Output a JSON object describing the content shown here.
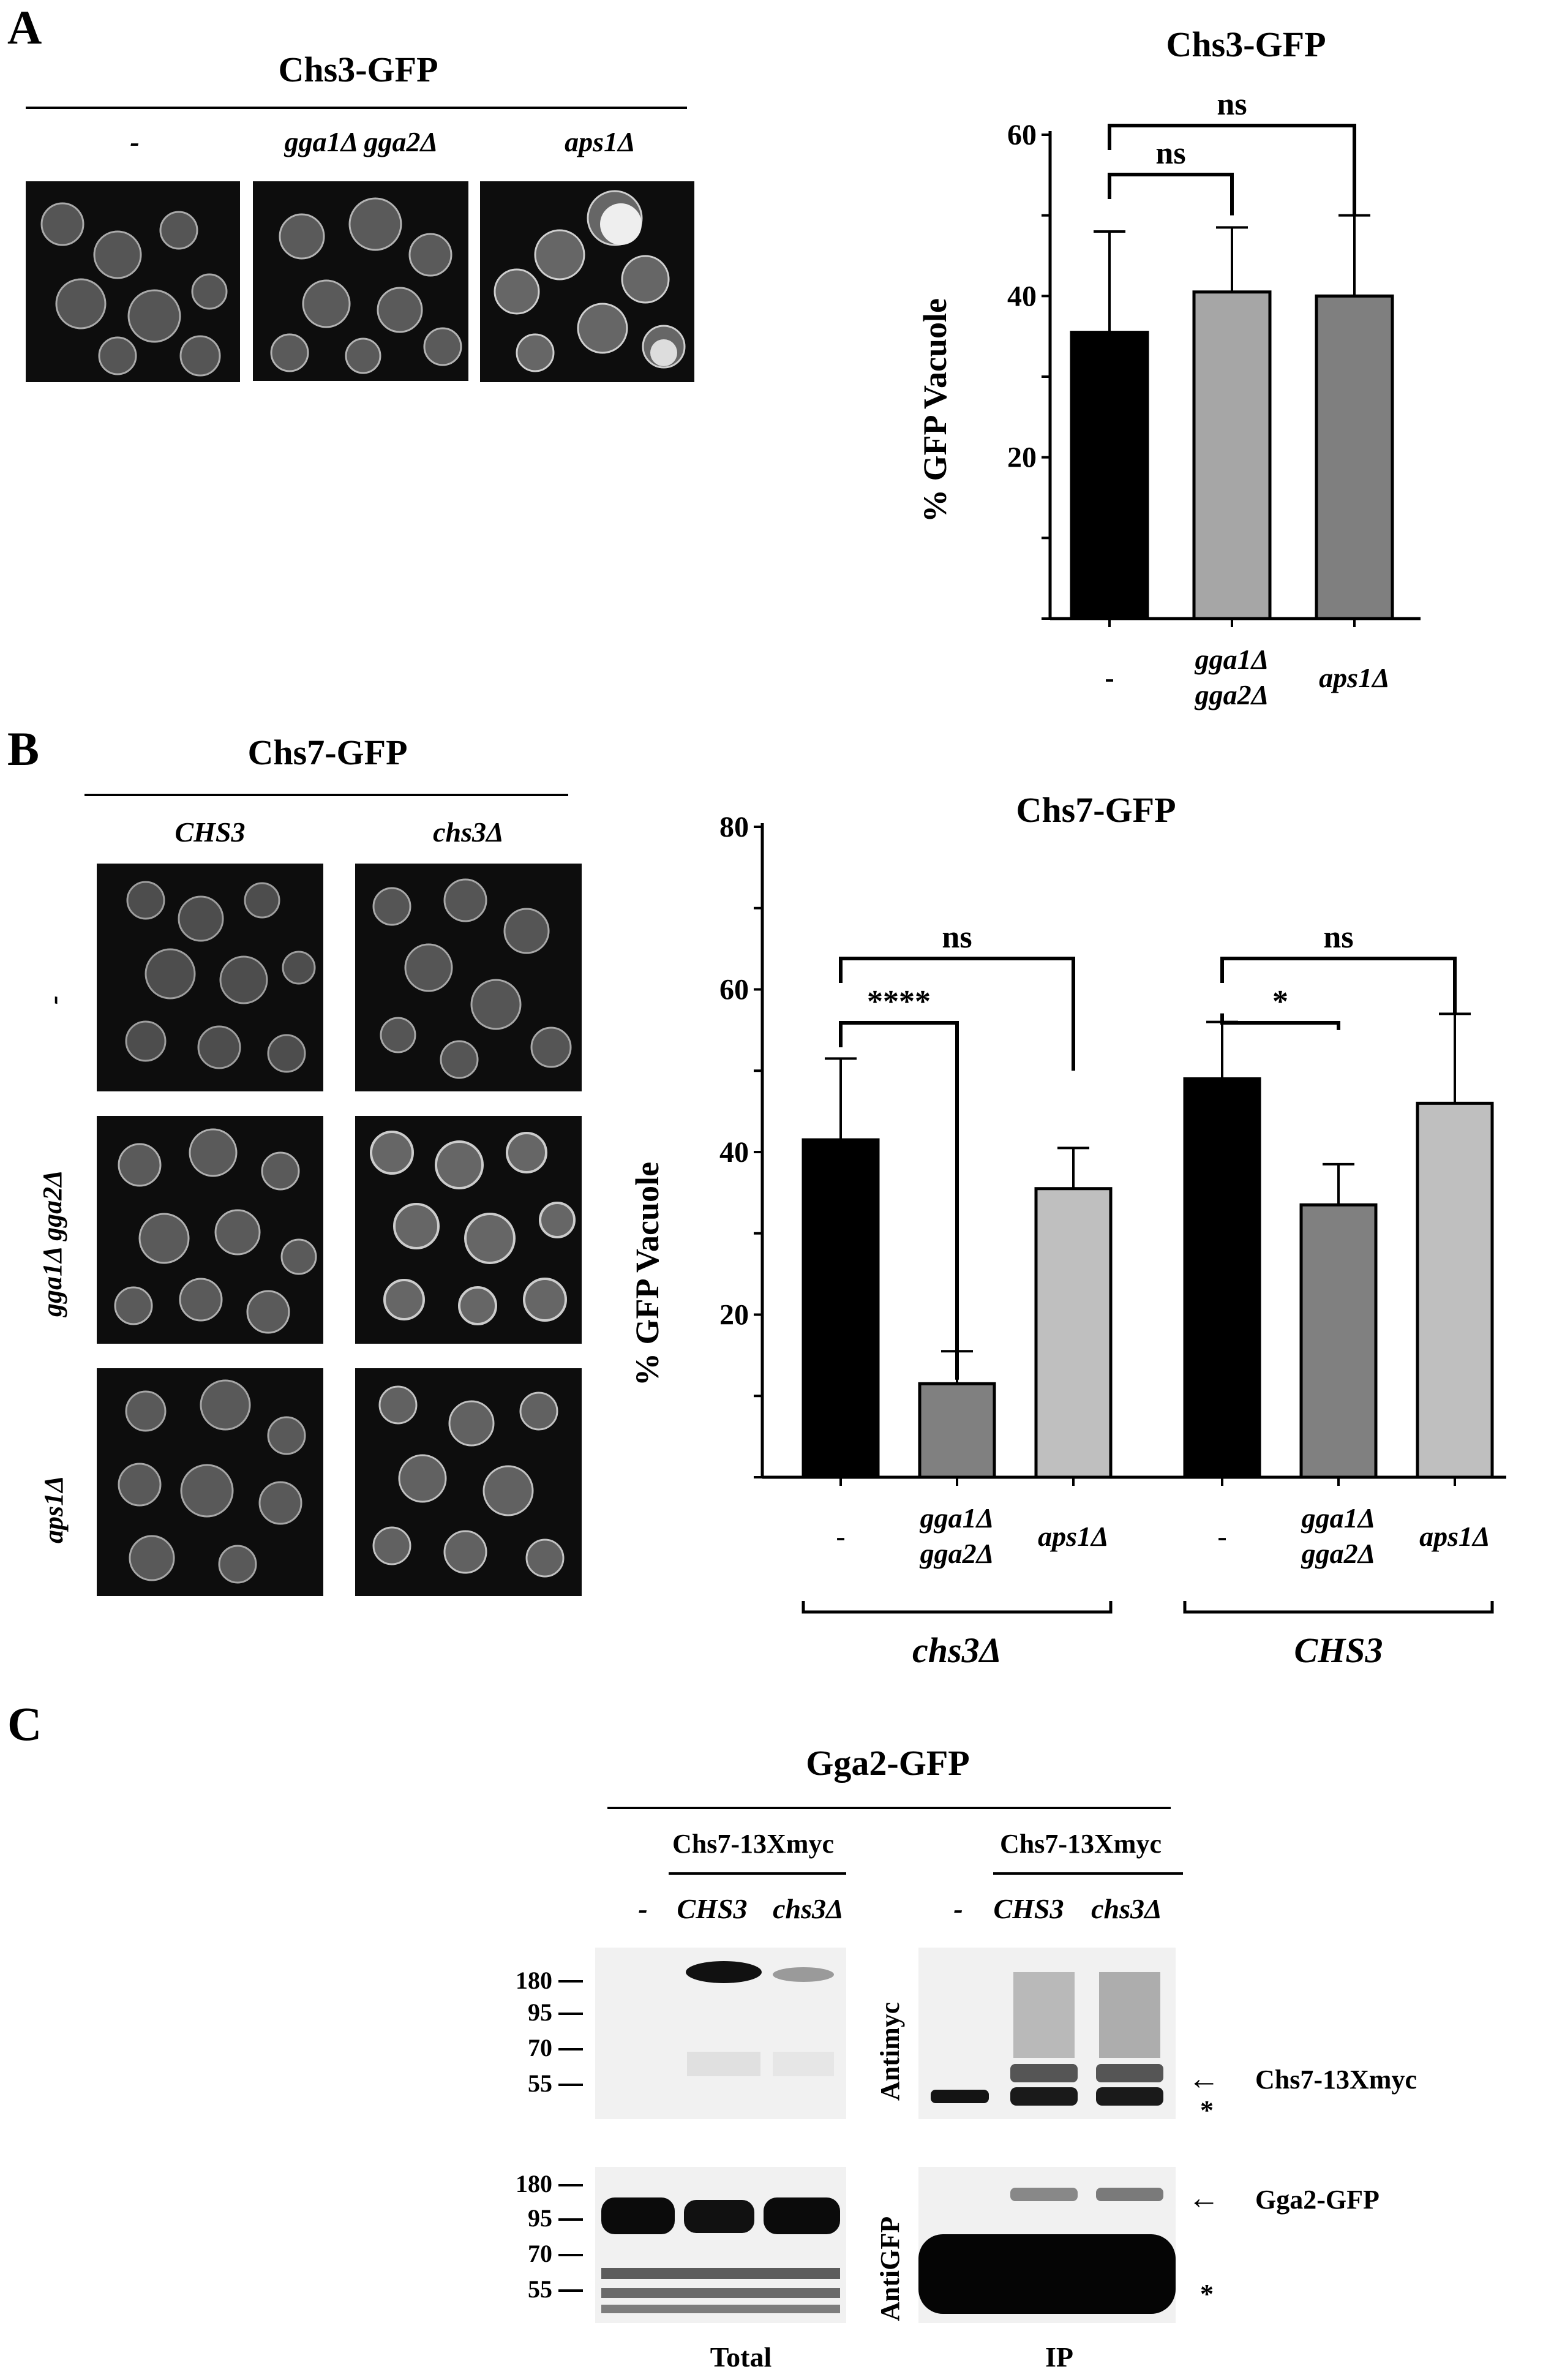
{
  "panels": {
    "a": {
      "label": "A",
      "title": "Chs3-GFP",
      "conditions": [
        "-",
        "gga1Δ gga2Δ",
        "aps1Δ"
      ]
    },
    "b": {
      "label": "B",
      "title": "Chs7-GFP",
      "columns": [
        "CHS3",
        "chs3Δ"
      ],
      "rows": [
        "-",
        "gga1Δ gga2Δ",
        "aps1Δ"
      ]
    },
    "c": {
      "label": "C",
      "title": "Gga2-GFP",
      "total_header": "Chs7-13Xmyc",
      "ip_header": "Chs7-13Xmyc",
      "total_lanes": [
        "-",
        "CHS3",
        "chs3Δ"
      ],
      "ip_lanes": [
        "-",
        "CHS3",
        "chs3Δ"
      ],
      "mw_top": [
        "180",
        "95",
        "70",
        "55"
      ],
      "mw_bottom": [
        "180",
        "95",
        "70",
        "55"
      ],
      "antibody_top": "Antimyc",
      "antibody_bottom": "AntiGFP",
      "arrow_top": "Chs7-13Xmyc",
      "arrow_bottom": "Gga2-GFP",
      "asterisk": "*",
      "footer_total": "Total",
      "footer_ip": "IP"
    }
  },
  "chart_data": [
    {
      "type": "bar",
      "title": "Chs3-GFP",
      "ylabel": "% GFP Vacuole",
      "ylim": [
        0,
        60
      ],
      "yticks": [
        20,
        40,
        60
      ],
      "categories": [
        "-",
        "gga1Δ gga2Δ",
        "aps1Δ"
      ],
      "values": [
        35.5,
        40.5,
        40
      ],
      "errors": [
        12.5,
        8,
        10
      ],
      "colors": [
        "#000000",
        "#a6a6a6",
        "#7f7f7f"
      ],
      "comparisons": [
        {
          "from": 0,
          "to": 1,
          "label": "ns"
        },
        {
          "from": 0,
          "to": 2,
          "label": "ns"
        }
      ]
    },
    {
      "type": "bar",
      "title": "Chs7-GFP",
      "ylabel": "% GFP Vacuole",
      "ylim": [
        0,
        80
      ],
      "yticks": [
        20,
        40,
        60,
        80
      ],
      "categories": [
        "-",
        "gga1Δ gga2Δ",
        "aps1Δ",
        "-",
        "gga1Δ gga2Δ",
        "aps1Δ"
      ],
      "groups": [
        {
          "name": "chs3Δ",
          "indices": [
            0,
            1,
            2
          ]
        },
        {
          "name": "CHS3",
          "indices": [
            3,
            4,
            5
          ]
        }
      ],
      "values": [
        41.5,
        11.5,
        35.5,
        49,
        33.5,
        46
      ],
      "errors": [
        10,
        4,
        5,
        7,
        5,
        11
      ],
      "colors": [
        "#000000",
        "#808080",
        "#bfbfbf",
        "#000000",
        "#808080",
        "#bfbfbf"
      ],
      "comparisons": [
        {
          "from": 0,
          "to": 1,
          "label": "****"
        },
        {
          "from": 0,
          "to": 2,
          "label": "ns"
        },
        {
          "from": 3,
          "to": 4,
          "label": "*"
        },
        {
          "from": 3,
          "to": 5,
          "label": "ns"
        }
      ]
    }
  ]
}
